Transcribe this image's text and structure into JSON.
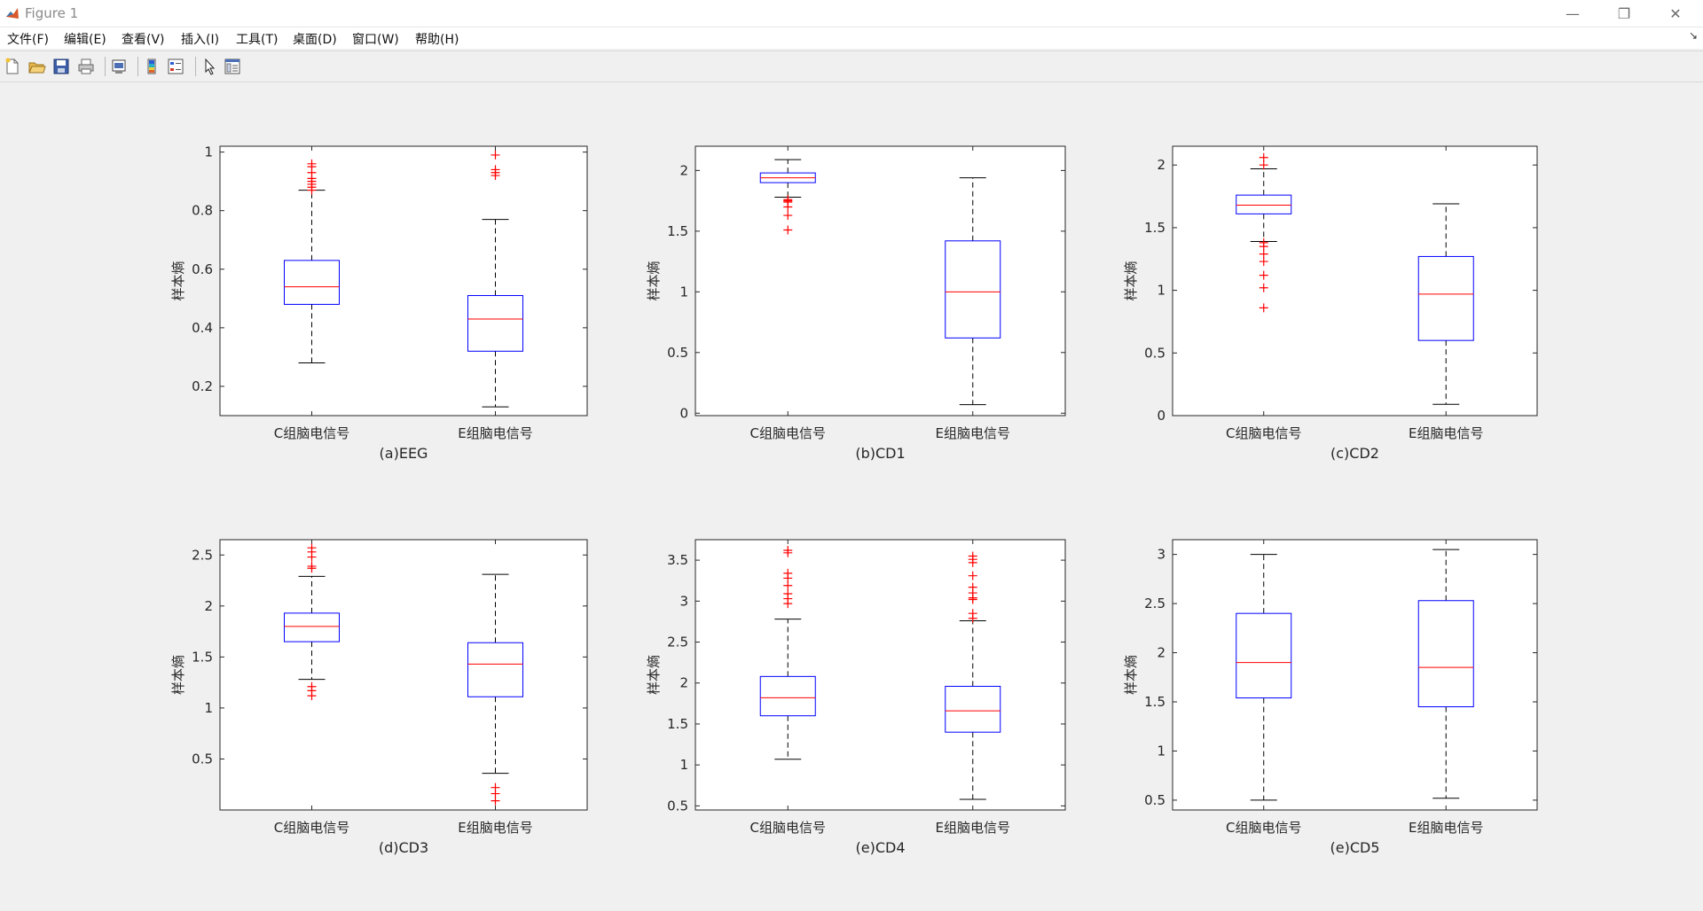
{
  "window": {
    "title": "Figure 1",
    "controls": {
      "minimize": "—",
      "restore": "❐",
      "close": "✕"
    }
  },
  "menubar": {
    "items": [
      {
        "label": "文件(F)"
      },
      {
        "label": "编辑(E)"
      },
      {
        "label": "查看(V)"
      },
      {
        "label": "插入(I)"
      },
      {
        "label": "工具(T)"
      },
      {
        "label": "桌面(D)"
      },
      {
        "label": "窗口(W)"
      },
      {
        "label": "帮助(H)"
      }
    ],
    "overflow_arrow": "↘"
  },
  "toolbar": {
    "buttons": [
      "new-figure-icon",
      "open-file-icon",
      "save-icon",
      "print-icon",
      "print-preview-icon",
      "colorbar-icon",
      "legend-icon",
      "pointer-icon",
      "property-editor-icon"
    ]
  },
  "colors": {
    "box": "#0000ff",
    "median": "#ff0000",
    "outlier": "#ff0000",
    "whisker": "#000000"
  },
  "chart_data": [
    {
      "type": "boxplot",
      "caption": "(a)EEG",
      "ylabel": "样本熵",
      "ylim": [
        0.1,
        1.02
      ],
      "yticks": [
        0.2,
        0.4,
        0.6,
        0.8,
        1
      ],
      "categories": [
        "C组脑电信号",
        "E组脑电信号"
      ],
      "boxes": [
        {
          "whisker_low": 0.28,
          "q1": 0.48,
          "median": 0.54,
          "q3": 0.63,
          "whisker_high": 0.87,
          "outliers": [
            0.87,
            0.88,
            0.89,
            0.9,
            0.91,
            0.93,
            0.95,
            0.96
          ]
        },
        {
          "whisker_low": 0.13,
          "q1": 0.32,
          "median": 0.43,
          "q3": 0.51,
          "whisker_high": 0.77,
          "outliers": [
            0.92,
            0.93,
            0.94,
            0.99
          ]
        }
      ]
    },
    {
      "type": "boxplot",
      "caption": "(b)CD1",
      "ylabel": "样本熵",
      "ylim": [
        -0.02,
        2.2
      ],
      "yticks": [
        0,
        0.5,
        1,
        1.5,
        2
      ],
      "categories": [
        "C组脑电信号",
        "E组脑电信号"
      ],
      "boxes": [
        {
          "whisker_low": 1.78,
          "q1": 1.9,
          "median": 1.94,
          "q3": 1.98,
          "whisker_high": 2.09,
          "outliers": [
            1.51,
            1.63,
            1.7,
            1.74,
            1.75,
            1.76
          ]
        },
        {
          "whisker_low": 0.07,
          "q1": 0.62,
          "median": 1.0,
          "q3": 1.42,
          "whisker_high": 1.94,
          "outliers": []
        }
      ]
    },
    {
      "type": "boxplot",
      "caption": "(c)CD2",
      "ylabel": "样本熵",
      "ylim": [
        0,
        2.15
      ],
      "yticks": [
        0,
        0.5,
        1,
        1.5,
        2
      ],
      "categories": [
        "C组脑电信号",
        "E组脑电信号"
      ],
      "boxes": [
        {
          "whisker_low": 1.39,
          "q1": 1.61,
          "median": 1.68,
          "q3": 1.76,
          "whisker_high": 1.97,
          "outliers": [
            0.86,
            1.02,
            1.12,
            1.23,
            1.29,
            1.35,
            1.38,
            2.0,
            2.06
          ]
        },
        {
          "whisker_low": 0.09,
          "q1": 0.6,
          "median": 0.97,
          "q3": 1.27,
          "whisker_high": 1.69,
          "outliers": []
        }
      ]
    },
    {
      "type": "boxplot",
      "caption": "(d)CD3",
      "ylabel": "样本熵",
      "ylim": [
        0,
        2.65
      ],
      "yticks": [
        0.5,
        1,
        1.5,
        2,
        2.5
      ],
      "categories": [
        "C组脑电信号",
        "E组脑电信号"
      ],
      "boxes": [
        {
          "whisker_low": 1.28,
          "q1": 1.65,
          "median": 1.8,
          "q3": 1.93,
          "whisker_high": 2.29,
          "outliers": [
            1.12,
            1.17,
            1.21,
            2.37,
            2.39,
            2.48,
            2.53,
            2.57
          ]
        },
        {
          "whisker_low": 0.36,
          "q1": 1.11,
          "median": 1.43,
          "q3": 1.64,
          "whisker_high": 2.31,
          "outliers": [
            0.09,
            0.16,
            0.22
          ]
        }
      ]
    },
    {
      "type": "boxplot",
      "caption": "(e)CD4",
      "ylabel": "样本熵",
      "ylim": [
        0.45,
        3.75
      ],
      "yticks": [
        0.5,
        1,
        1.5,
        2,
        2.5,
        3,
        3.5
      ],
      "categories": [
        "C组脑电信号",
        "E组脑电信号"
      ],
      "boxes": [
        {
          "whisker_low": 1.07,
          "q1": 1.6,
          "median": 1.82,
          "q3": 2.08,
          "whisker_high": 2.78,
          "outliers": [
            2.97,
            3.03,
            3.09,
            3.19,
            3.28,
            3.34,
            3.59,
            3.62
          ]
        },
        {
          "whisker_low": 0.58,
          "q1": 1.4,
          "median": 1.66,
          "q3": 1.96,
          "whisker_high": 2.76,
          "outliers": [
            2.79,
            2.85,
            3.02,
            3.04,
            3.1,
            3.17,
            3.31,
            3.47,
            3.51,
            3.55
          ]
        }
      ]
    },
    {
      "type": "boxplot",
      "caption": "(e)CD5",
      "ylabel": "样本熵",
      "ylim": [
        0.4,
        3.15
      ],
      "yticks": [
        0.5,
        1,
        1.5,
        2,
        2.5,
        3
      ],
      "categories": [
        "C组脑电信号",
        "E组脑电信号"
      ],
      "boxes": [
        {
          "whisker_low": 0.5,
          "q1": 1.54,
          "median": 1.9,
          "q3": 2.4,
          "whisker_high": 3.0,
          "outliers": []
        },
        {
          "whisker_low": 0.52,
          "q1": 1.45,
          "median": 1.85,
          "q3": 2.53,
          "whisker_high": 3.05,
          "outliers": []
        }
      ]
    }
  ]
}
